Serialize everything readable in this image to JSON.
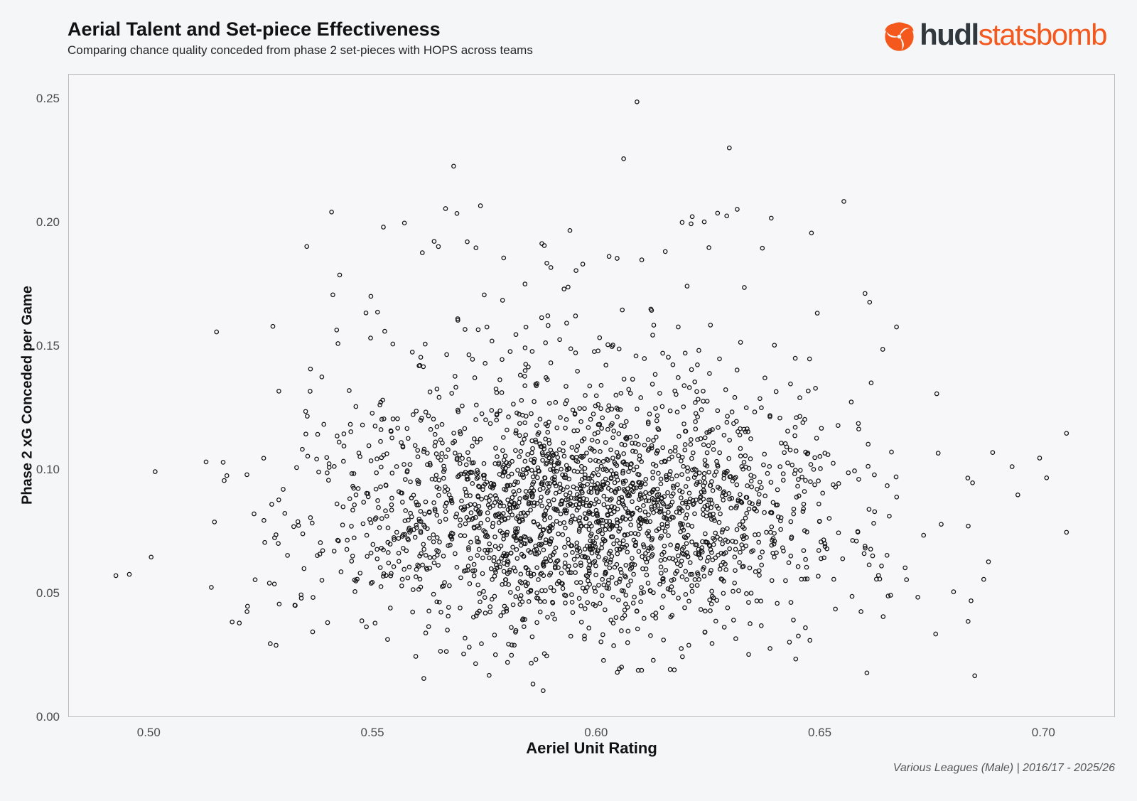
{
  "header": {
    "title": "Aerial Talent and Set-piece Effectiveness",
    "subtitle": "Comparing chance quality conceded from phase 2 set-pieces with HOPS across teams",
    "logo": {
      "bold_text": "hudl",
      "light_text": "statsbomb",
      "orange": "#F4581C",
      "dark": "#31383E",
      "icon": "hudl-swirl-icon"
    }
  },
  "footer": {
    "note": "Various Leagues (Male) | 2016/17 - 2025/26"
  },
  "chart_data": {
    "type": "scatter",
    "title": "Aerial Talent and Set-piece Effectiveness",
    "subtitle": "Comparing chance quality conceded from phase 2 set-pieces with HOPS across teams",
    "xlabel": "Aeriel Unit Rating",
    "ylabel": "Phase 2 xG Conceded per Game",
    "xlim": [
      0.482,
      0.716
    ],
    "ylim": [
      0.0,
      0.26
    ],
    "x_ticks": [
      {
        "value": 0.5,
        "label": "0.50"
      },
      {
        "value": 0.55,
        "label": "0.55"
      },
      {
        "value": 0.6,
        "label": "0.60"
      },
      {
        "value": 0.65,
        "label": "0.65"
      },
      {
        "value": 0.7,
        "label": "0.70"
      }
    ],
    "y_ticks": [
      {
        "value": 0.0,
        "label": "0.00"
      },
      {
        "value": 0.05,
        "label": "0.05"
      },
      {
        "value": 0.1,
        "label": "0.10"
      },
      {
        "value": 0.15,
        "label": "0.15"
      },
      {
        "value": 0.2,
        "label": "0.20"
      },
      {
        "value": 0.25,
        "label": "0.25"
      }
    ],
    "grid": false,
    "legend": false,
    "background": "#f7f7f9",
    "axis_color": "#b9bbbf",
    "marker": {
      "shape": "open-circle",
      "radius_px": 2.7,
      "stroke": "#151515",
      "stroke_width_px": 1.25,
      "fill": "none"
    },
    "points": {
      "total": 2430,
      "seed": 20251607,
      "x_dist": {
        "kind": "normal",
        "mean": 0.5975,
        "std": 0.029,
        "clip": [
          0.488,
          0.708
        ]
      },
      "y_dist": {
        "kind": "normal-mixture",
        "components": [
          {
            "weight": 0.87,
            "mean": 0.0815,
            "std": 0.024
          },
          {
            "weight": 0.13,
            "mean": 0.118,
            "std": 0.042
          }
        ],
        "clip": [
          0.01,
          0.252
        ]
      },
      "notable_points": [
        [
          0.609,
          0.249
        ],
        [
          0.606,
          0.226
        ],
        [
          0.568,
          0.223
        ],
        [
          0.574,
          0.207
        ],
        [
          0.557,
          0.2
        ],
        [
          0.627,
          0.204
        ],
        [
          0.594,
          0.197
        ],
        [
          0.639,
          0.202
        ],
        [
          0.648,
          0.196
        ],
        [
          0.515,
          0.156
        ],
        [
          0.4925,
          0.0575
        ],
        [
          0.4955,
          0.058
        ],
        [
          0.705,
          0.115
        ],
        [
          0.699,
          0.105
        ],
        [
          0.705,
          0.075
        ],
        [
          0.683,
          0.039
        ],
        [
          0.6845,
          0.017
        ],
        [
          0.588,
          0.011
        ],
        [
          0.527,
          0.03
        ],
        [
          0.529,
          0.046
        ],
        [
          0.667,
          0.158
        ],
        [
          0.661,
          0.168
        ],
        [
          0.676,
          0.131
        ],
        [
          0.684,
          0.095
        ],
        [
          0.6865,
          0.056
        ],
        [
          0.541,
          0.171
        ],
        [
          0.551,
          0.164
        ],
        [
          0.561,
          0.188
        ],
        [
          0.573,
          0.19
        ],
        [
          0.536,
          0.141
        ]
      ]
    }
  }
}
